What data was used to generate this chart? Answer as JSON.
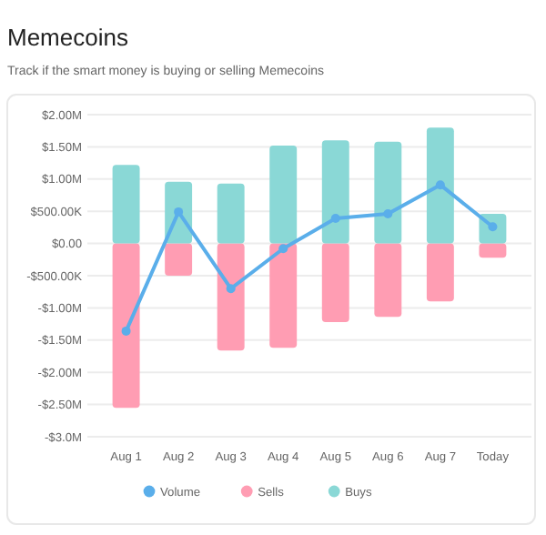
{
  "chart_data": {
    "type": "bar",
    "title": "Memecoins",
    "subtitle": "Track if the smart money is buying or selling Memecoins",
    "categories": [
      "Aug 1",
      "Aug 2",
      "Aug 3",
      "Aug 4",
      "Aug 5",
      "Aug 6",
      "Aug 7",
      "Today"
    ],
    "series": [
      {
        "name": "Volume",
        "type": "line",
        "color": "#5aaeea",
        "values": [
          -1360000,
          490000,
          -700000,
          -80000,
          390000,
          460000,
          910000,
          260000
        ]
      },
      {
        "name": "Sells",
        "color": "#ff9db3",
        "values": [
          -2550000,
          -500000,
          -1660000,
          -1620000,
          -1220000,
          -1140000,
          -900000,
          -220000
        ]
      },
      {
        "name": "Buys",
        "color": "#8ad8d6",
        "values": [
          1220000,
          960000,
          930000,
          1520000,
          1600000,
          1580000,
          1800000,
          460000
        ]
      }
    ],
    "stacked": true,
    "ylim": [
      -3000000,
      2000000
    ],
    "yticks": [
      {
        "value": -3000000,
        "label": "-$3.0M"
      },
      {
        "value": -2500000,
        "label": "-$2.50M"
      },
      {
        "value": -2000000,
        "label": "-$2.00M"
      },
      {
        "value": -1500000,
        "label": "-$1.50M"
      },
      {
        "value": -1000000,
        "label": "-$1.00M"
      },
      {
        "value": -500000,
        "label": "-$500.00K"
      },
      {
        "value": 0,
        "label": "$0.00"
      },
      {
        "value": 500000,
        "label": "$500.00K"
      },
      {
        "value": 1000000,
        "label": "$1.00M"
      },
      {
        "value": 1500000,
        "label": "$1.50M"
      },
      {
        "value": 2000000,
        "label": "$2.00M"
      }
    ],
    "grid": "y",
    "legend": "bottom",
    "marker": "circle",
    "line_style": "solid"
  }
}
